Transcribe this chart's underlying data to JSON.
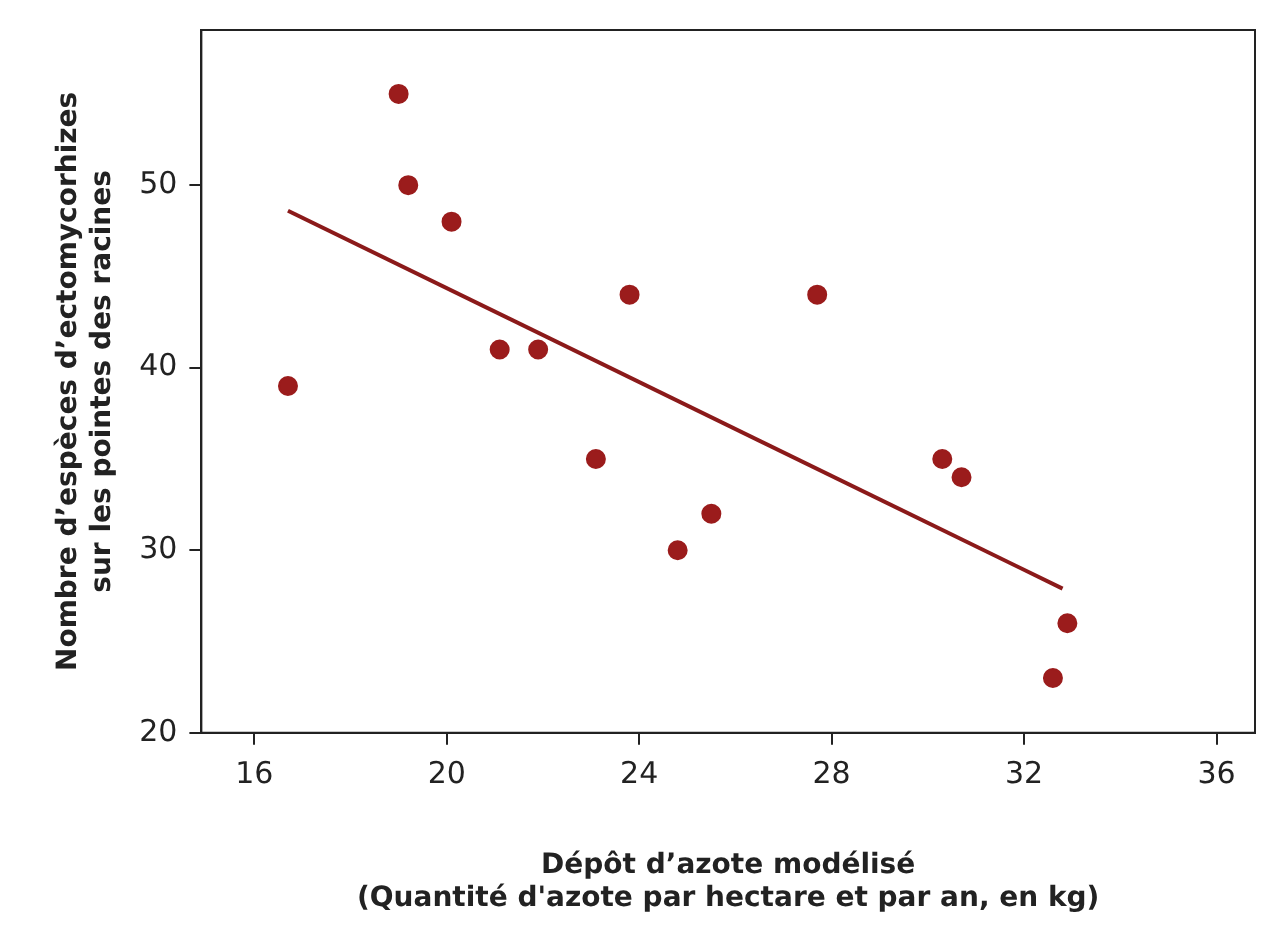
{
  "chart_data": {
    "type": "scatter",
    "xlabel": "Dépôt d’azote modélisé\n(Quantité d'azote par hectare et par an, en kg)",
    "ylabel": "Nombre d’espèces d’ectomycorhizes\nsur les pointes des racines",
    "xlim": [
      14.9,
      36.8
    ],
    "xticks": [
      16,
      20,
      24,
      28,
      32,
      36
    ],
    "ylim": [
      20,
      58.5
    ],
    "yticks": [
      20,
      30,
      40,
      50
    ],
    "grid": false,
    "legend": false,
    "series": [
      {
        "type": "scatter",
        "marker": "circle",
        "color": "#9b1c1c",
        "x": [
          16.7,
          19.0,
          19.2,
          20.1,
          21.1,
          21.9,
          23.1,
          23.8,
          24.8,
          25.5,
          27.7,
          30.3,
          30.7,
          32.6,
          32.9
        ],
        "values": [
          39,
          55,
          50,
          48,
          41,
          41,
          35,
          44,
          30,
          32,
          44,
          35,
          34,
          23,
          26
        ]
      },
      {
        "type": "line",
        "color": "#8b1a1a",
        "x": [
          16.7,
          32.8
        ],
        "values": [
          48.6,
          27.9
        ]
      }
    ]
  }
}
